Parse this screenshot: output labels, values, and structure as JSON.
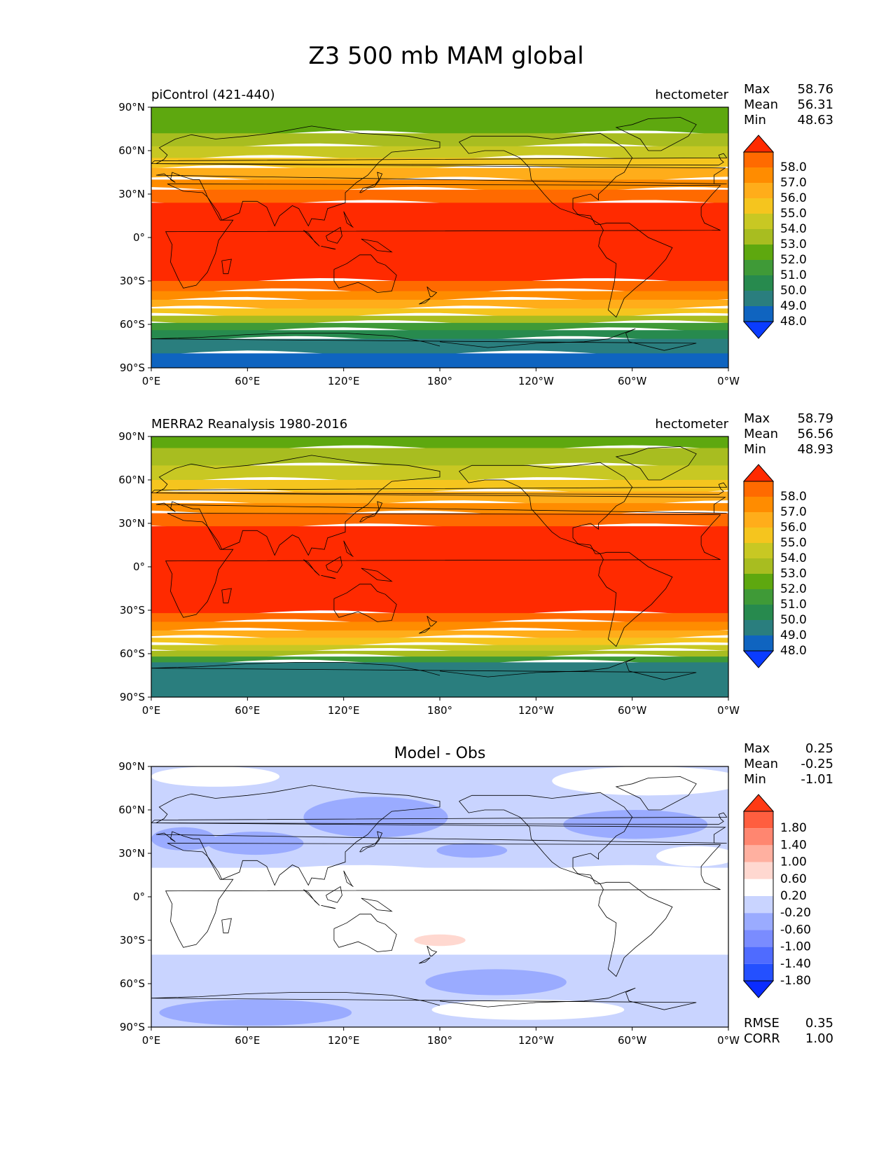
{
  "figure": {
    "title": "Z3 500 mb MAM global"
  },
  "axes_ticks": {
    "lon_labels": [
      "0°E",
      "60°E",
      "120°E",
      "180°",
      "120°W",
      "60°W",
      "0°W"
    ],
    "lat_labels": [
      "90°N",
      "60°N",
      "30°N",
      "0°",
      "30°S",
      "60°S",
      "90°S"
    ]
  },
  "chart_data": [
    {
      "type": "heatmap",
      "title": "piControl (421-440)",
      "units": "hectometer",
      "xlim": [
        0,
        360
      ],
      "ylim": [
        -90,
        90
      ],
      "stats": [
        {
          "label": "Max",
          "value": "58.76"
        },
        {
          "label": "Mean",
          "value": "56.31"
        },
        {
          "label": "Min",
          "value": "48.63"
        }
      ],
      "colorbar": {
        "levels": [
          "58.0",
          "57.0",
          "56.0",
          "55.0",
          "54.0",
          "53.0",
          "52.0",
          "51.0",
          "50.0",
          "49.0",
          "48.0"
        ],
        "colors": [
          "#ff2a00",
          "#ff6a00",
          "#ff8c00",
          "#ffad1a",
          "#f5c51e",
          "#c8c823",
          "#a8bd20",
          "#5ea80f",
          "#3f9a37",
          "#278a4e",
          "#2a7e7e",
          "#0f64c0",
          "#0a3cff"
        ]
      },
      "bands_lat_top_to_bottom": [
        {
          "lat_top": 90,
          "lat_bottom": 72,
          "level_index": 7
        },
        {
          "lat_top": 72,
          "lat_bottom": 63,
          "level_index": 6
        },
        {
          "lat_top": 63,
          "lat_bottom": 55,
          "level_index": 5
        },
        {
          "lat_top": 55,
          "lat_bottom": 48,
          "level_index": 4
        },
        {
          "lat_top": 48,
          "lat_bottom": 40,
          "level_index": 3
        },
        {
          "lat_top": 40,
          "lat_bottom": 33,
          "level_index": 2
        },
        {
          "lat_top": 33,
          "lat_bottom": 24,
          "level_index": 1
        },
        {
          "lat_top": 24,
          "lat_bottom": -30,
          "level_index": 0
        },
        {
          "lat_top": -30,
          "lat_bottom": -37,
          "level_index": 1
        },
        {
          "lat_top": -37,
          "lat_bottom": -43,
          "level_index": 2
        },
        {
          "lat_top": -43,
          "lat_bottom": -49,
          "level_index": 3
        },
        {
          "lat_top": -49,
          "lat_bottom": -54,
          "level_index": 4
        },
        {
          "lat_top": -54,
          "lat_bottom": -59,
          "level_index": 6
        },
        {
          "lat_top": -59,
          "lat_bottom": -64,
          "level_index": 8
        },
        {
          "lat_top": -64,
          "lat_bottom": -70,
          "level_index": 9
        },
        {
          "lat_top": -70,
          "lat_bottom": -80,
          "level_index": 10
        },
        {
          "lat_top": -80,
          "lat_bottom": -90,
          "level_index": 11
        }
      ]
    },
    {
      "type": "heatmap",
      "title": "MERRA2 Reanalysis 1980-2016",
      "units": "hectometer",
      "xlim": [
        0,
        360
      ],
      "ylim": [
        -90,
        90
      ],
      "stats": [
        {
          "label": "Max",
          "value": "58.79"
        },
        {
          "label": "Mean",
          "value": "56.56"
        },
        {
          "label": "Min",
          "value": "48.93"
        }
      ],
      "colorbar": {
        "levels": [
          "58.0",
          "57.0",
          "56.0",
          "55.0",
          "54.0",
          "53.0",
          "52.0",
          "51.0",
          "50.0",
          "49.0",
          "48.0"
        ],
        "colors": [
          "#ff2a00",
          "#ff6a00",
          "#ff8c00",
          "#ffad1a",
          "#f5c51e",
          "#c8c823",
          "#a8bd20",
          "#5ea80f",
          "#3f9a37",
          "#278a4e",
          "#2a7e7e",
          "#0f64c0",
          "#0a3cff"
        ]
      },
      "bands_lat_top_to_bottom": [
        {
          "lat_top": 90,
          "lat_bottom": 82,
          "level_index": 7
        },
        {
          "lat_top": 82,
          "lat_bottom": 70,
          "level_index": 6
        },
        {
          "lat_top": 70,
          "lat_bottom": 60,
          "level_index": 5
        },
        {
          "lat_top": 60,
          "lat_bottom": 52,
          "level_index": 4
        },
        {
          "lat_top": 52,
          "lat_bottom": 44,
          "level_index": 3
        },
        {
          "lat_top": 44,
          "lat_bottom": 37,
          "level_index": 2
        },
        {
          "lat_top": 37,
          "lat_bottom": 28,
          "level_index": 1
        },
        {
          "lat_top": 28,
          "lat_bottom": -32,
          "level_index": 0
        },
        {
          "lat_top": -32,
          "lat_bottom": -38,
          "level_index": 1
        },
        {
          "lat_top": -38,
          "lat_bottom": -44,
          "level_index": 2
        },
        {
          "lat_top": -44,
          "lat_bottom": -49,
          "level_index": 3
        },
        {
          "lat_top": -49,
          "lat_bottom": -54,
          "level_index": 4
        },
        {
          "lat_top": -54,
          "lat_bottom": -58,
          "level_index": 5
        },
        {
          "lat_top": -58,
          "lat_bottom": -62,
          "level_index": 6
        },
        {
          "lat_top": -62,
          "lat_bottom": -66,
          "level_index": 8
        },
        {
          "lat_top": -66,
          "lat_bottom": -90,
          "level_index": 10
        }
      ]
    },
    {
      "type": "heatmap",
      "title": "Model - Obs",
      "units": "",
      "xlim": [
        0,
        360
      ],
      "ylim": [
        -90,
        90
      ],
      "stats": [
        {
          "label": "Max",
          "value": "0.25"
        },
        {
          "label": "Mean",
          "value": "-0.25"
        },
        {
          "label": "Min",
          "value": "-1.01"
        }
      ],
      "metrics": [
        {
          "label": "RMSE",
          "value": "0.35"
        },
        {
          "label": "CORR",
          "value": "1.00"
        }
      ],
      "colorbar": {
        "levels": [
          "1.80",
          "1.40",
          "1.00",
          "0.60",
          "0.20",
          "-0.20",
          "-0.60",
          "-1.00",
          "-1.40",
          "-1.80"
        ],
        "colors": [
          "#ff3a14",
          "#ff5e3f",
          "#ff8670",
          "#ffb0a0",
          "#ffd8d0",
          "#ffffff",
          "#c9d4ff",
          "#9aabff",
          "#7a8cff",
          "#4f6bff",
          "#2450ff",
          "#0a2cff"
        ]
      },
      "bands_lat_top_to_bottom": [
        {
          "lat_top": 90,
          "lat_bottom": 20,
          "level_index": 6
        },
        {
          "lat_top": 20,
          "lat_bottom": -40,
          "level_index": 5
        },
        {
          "lat_top": -40,
          "lat_bottom": -90,
          "level_index": 6
        }
      ],
      "patches": [
        {
          "lon": 140,
          "lat": 55,
          "dlon": 45,
          "dlat": 14,
          "level_index": 7
        },
        {
          "lon": 65,
          "lat": 37,
          "dlon": 30,
          "dlat": 8,
          "level_index": 7
        },
        {
          "lon": 20,
          "lat": 40,
          "dlon": 20,
          "dlat": 8,
          "level_index": 7
        },
        {
          "lon": 200,
          "lat": 32,
          "dlon": 22,
          "dlat": 5,
          "level_index": 7
        },
        {
          "lon": 302,
          "lat": 50,
          "dlon": 45,
          "dlat": 10,
          "level_index": 7
        },
        {
          "lon": 215,
          "lat": -59,
          "dlon": 44,
          "dlat": 9,
          "level_index": 7
        },
        {
          "lon": 65,
          "lat": -80,
          "dlon": 60,
          "dlat": 9,
          "level_index": 7
        },
        {
          "lon": 180,
          "lat": -30,
          "dlon": 16,
          "dlat": 4,
          "level_index": 4
        },
        {
          "lon": 40,
          "lat": 83,
          "dlon": 40,
          "dlat": 7,
          "level_index": 5
        },
        {
          "lon": 310,
          "lat": 80,
          "dlon": 60,
          "dlat": 10,
          "level_index": 5
        },
        {
          "lon": 235,
          "lat": -78,
          "dlon": 60,
          "dlat": 7,
          "level_index": 5
        },
        {
          "lon": 340,
          "lat": 28,
          "dlon": 25,
          "dlat": 7,
          "level_index": 5
        }
      ]
    }
  ]
}
